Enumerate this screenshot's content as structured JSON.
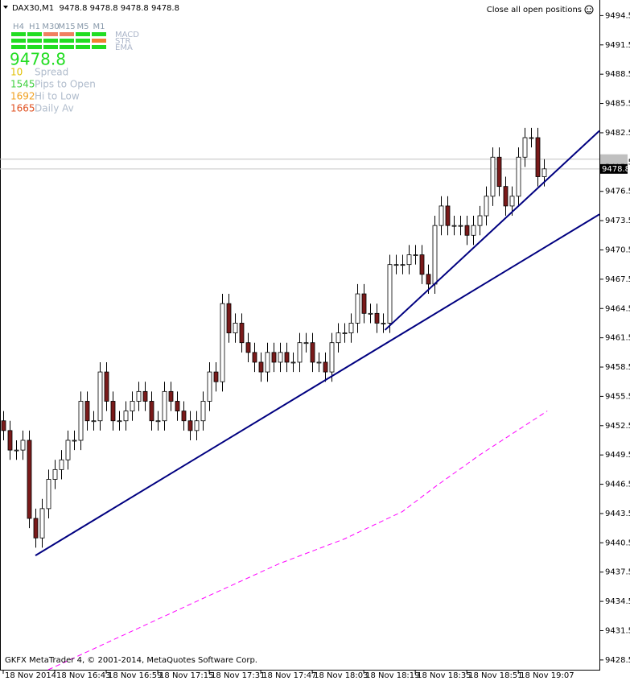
{
  "header": "DAX30,M1  9478.8 9478.8 9478.8 9478.8",
  "button": "Close all open positions",
  "footer": "GKFX MetaTrader 4, © 2001-2014, MetaQuotes Software Corp.",
  "panel": {
    "timeframes": [
      "H4",
      "H1",
      "M30",
      "M15",
      "M5",
      "M1"
    ],
    "rows": [
      {
        "name": "MACD",
        "colors": [
          "#22dd22",
          "#22dd22",
          "#f08060",
          "#f08060",
          "#22dd22",
          "#22dd22"
        ]
      },
      {
        "name": "STR",
        "colors": [
          "#22dd22",
          "#22dd22",
          "#22dd22",
          "#22dd22",
          "#22dd22",
          "#f08030"
        ]
      },
      {
        "name": "EMA",
        "colors": [
          "#22dd22",
          "#22dd22",
          "#22dd22",
          "#22dd22",
          "#22dd22",
          "#22dd22"
        ]
      }
    ],
    "price": "9478.8",
    "info": [
      {
        "value": "10",
        "label": "Spread",
        "color": "#e0c000"
      },
      {
        "value": "1545",
        "label": "Pips to Open",
        "color": "#40d040"
      },
      {
        "value": "1692",
        "label": "Hi to Low",
        "color": "#f0a020"
      },
      {
        "value": "1665",
        "label": "Daily Av",
        "color": "#e05020"
      }
    ]
  },
  "chart_data": {
    "type": "candlestick",
    "xlim": [
      -0.5,
      92.6
    ],
    "xticks": [
      {
        "value": 0,
        "label": "18 Nov 2014"
      },
      {
        "value": 8,
        "label": "18 Nov 16:43"
      },
      {
        "value": 16,
        "label": "18 Nov 16:59"
      },
      {
        "value": 24,
        "label": "18 Nov 17:15"
      },
      {
        "value": 32,
        "label": "18 Nov 17:31"
      },
      {
        "value": 40,
        "label": "18 Nov 17:47"
      },
      {
        "value": 48,
        "label": "18 Nov 18:03"
      },
      {
        "value": 56,
        "label": "18 Nov 18:19"
      },
      {
        "value": 64,
        "label": "18 Nov 18:35"
      },
      {
        "value": 72,
        "label": "18 Nov 18:51"
      },
      {
        "value": 80,
        "label": "18 Nov 19:07"
      }
    ],
    "ylim": [
      9427.5,
      9496.1
    ],
    "yticks": [
      9428.5,
      9431.5,
      9434.5,
      9437.5,
      9440.5,
      9443.5,
      9446.5,
      9449.5,
      9452.5,
      9455.5,
      9458.5,
      9461.5,
      9464.5,
      9467.5,
      9470.5,
      9473.5,
      9476.5,
      9479.5,
      9482.5,
      9485.5,
      9488.5,
      9491.5,
      9494.5
    ],
    "up_color": "#ffffff",
    "down_color": "#7a1a1a",
    "wick_color": "#000000",
    "candles": {
      "open": [
        9453,
        9452,
        9450,
        9450,
        9451,
        9443,
        9441,
        9444,
        9447,
        9448,
        9449,
        9451,
        9451,
        9455,
        9453,
        9453,
        9458,
        9455,
        9453,
        9453,
        9454,
        9455,
        9456,
        9455,
        9453,
        9453,
        9456,
        9455,
        9454,
        9453,
        9452,
        9453,
        9455,
        9458,
        9457,
        9465,
        9462,
        9463,
        9461,
        9460,
        9459,
        9458,
        9460,
        9459,
        9460,
        9459,
        9459,
        9461,
        9461,
        9459,
        9459,
        9458,
        9461,
        9462,
        9462,
        9463,
        9466,
        9464,
        9464,
        9463,
        9463,
        9469,
        9469,
        9469,
        9470,
        9470,
        9468,
        9467,
        9473,
        9475,
        9473,
        9473,
        9473,
        9472,
        9473,
        9474,
        9476,
        9480,
        9477,
        9475,
        9476,
        9480,
        9482,
        9482,
        9478
      ],
      "high": [
        9454,
        9453,
        9451,
        9452,
        9452,
        9444,
        9445,
        9448,
        9449,
        9450,
        9452,
        9452,
        9456,
        9456,
        9454,
        9459,
        9459,
        9456,
        9454,
        9455,
        9456,
        9457,
        9457,
        9456,
        9454,
        9457,
        9457,
        9456,
        9455,
        9454,
        9454,
        9456,
        9459,
        9459,
        9466,
        9466,
        9464,
        9464,
        9462,
        9461,
        9460,
        9461,
        9461,
        9461,
        9461,
        9460,
        9462,
        9462,
        9462,
        9460,
        9460,
        9462,
        9463,
        9463,
        9464,
        9467,
        9467,
        9465,
        9465,
        9464,
        9470,
        9470,
        9470,
        9471,
        9471,
        9471,
        9469,
        9474,
        9476,
        9476,
        9474,
        9474,
        9474,
        9474,
        9475,
        9477,
        9481,
        9481,
        9478,
        9477,
        9481,
        9483,
        9483,
        9483,
        9479.8
      ],
      "low": [
        9451,
        9449,
        9449,
        9449,
        9442,
        9440,
        9440,
        9443,
        9446,
        9447,
        9448,
        9450,
        9450,
        9452,
        9452,
        9452,
        9454,
        9452,
        9452,
        9452,
        9453,
        9454,
        9454,
        9452,
        9452,
        9452,
        9454,
        9453,
        9452,
        9451,
        9451,
        9452,
        9454,
        9456,
        9456,
        9461,
        9461,
        9460,
        9459,
        9458,
        9457,
        9457,
        9458,
        9458,
        9458,
        9458,
        9458,
        9460,
        9458,
        9458,
        9457,
        9457,
        9460,
        9461,
        9461,
        9462,
        9463,
        9463,
        9462,
        9462,
        9462,
        9468,
        9468,
        9468,
        9469,
        9467,
        9466,
        9466,
        9472,
        9472,
        9472,
        9472,
        9471,
        9471,
        9472,
        9473,
        9475,
        9476,
        9474,
        9474,
        9475,
        9479,
        9481,
        9477,
        9477
      ],
      "close": [
        9452,
        9450,
        9450,
        9451,
        9443,
        9441,
        9444,
        9447,
        9448,
        9449,
        9451,
        9451,
        9455,
        9453,
        9453,
        9458,
        9455,
        9453,
        9453,
        9454,
        9455,
        9456,
        9455,
        9453,
        9453,
        9456,
        9455,
        9454,
        9453,
        9452,
        9453,
        9455,
        9458,
        9457,
        9465,
        9462,
        9463,
        9461,
        9460,
        9459,
        9458,
        9460,
        9459,
        9460,
        9459,
        9459,
        9461,
        9461,
        9459,
        9459,
        9458,
        9461,
        9462,
        9462,
        9463,
        9466,
        9464,
        9464,
        9463,
        9463,
        9469,
        9469,
        9469,
        9470,
        9470,
        9468,
        9467,
        9473,
        9475,
        9473,
        9473,
        9473,
        9472,
        9473,
        9474,
        9476,
        9480,
        9477,
        9475,
        9476,
        9480,
        9482,
        9482,
        9478,
        9478.8
      ]
    },
    "trendlines": [
      {
        "color": "#000080",
        "x": [
          5,
          92.6
        ],
        "y": [
          9439.2,
          9474.15
        ]
      },
      {
        "color": "#000080",
        "x": [
          59.3,
          92.6
        ],
        "y": [
          9462.3,
          9482.7
        ]
      }
    ],
    "ma": {
      "color": "#ff00ff",
      "x": [
        7,
        32,
        43,
        53,
        62,
        67,
        74,
        84.5
      ],
      "values": [
        9427.5,
        9435.1,
        9438.4,
        9440.9,
        9443.7,
        9446.2,
        9449.5,
        9454.0
      ]
    },
    "ask": {
      "value": 9479.8,
      "color": "#c0c0c0"
    },
    "bid": {
      "value": 9478.8,
      "label": "9478.8",
      "color": "#000000"
    }
  }
}
